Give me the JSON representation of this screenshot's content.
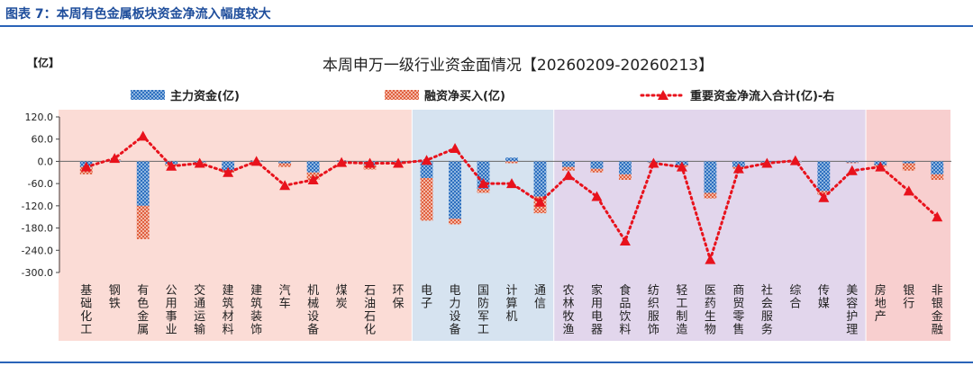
{
  "header": {
    "figure_label": "图表 7：本周有色金属板块资金净流入幅度较大"
  },
  "chart_data": {
    "type": "bar",
    "title": "本周申万一级行业资金面情况【20260209-20260213】",
    "ylabel": "【亿】",
    "ylim": [
      -300,
      120
    ],
    "yticks": [
      "120.0",
      "60.0",
      "0.0",
      "-60.0",
      "-120.0",
      "-180.0",
      "-240.0",
      "-300.0"
    ],
    "yticks_values": [
      120,
      60,
      0,
      -60,
      -120,
      -180,
      -240,
      -300
    ],
    "legend": [
      "主力资金(亿)",
      "融资净买入(亿)",
      "重要资金净流入合计(亿)-右"
    ],
    "legend_position": "top",
    "categories": [
      "基础化工",
      "钢铁",
      "有色金属",
      "公用事业",
      "交通运输",
      "建筑材料",
      "建筑装饰",
      "汽车",
      "机械设备",
      "煤炭",
      "石油石化",
      "环保",
      "电子",
      "电力设备",
      "国防军工",
      "计算机",
      "通信",
      "农林牧渔",
      "家用电器",
      "食品饮料",
      "纺织服饰",
      "轻工制造",
      "医药生物",
      "商贸零售",
      "社会服务",
      "综合",
      "传媒",
      "美容护理",
      "房地产",
      "银行",
      "非银金融"
    ],
    "series": [
      {
        "name": "主力资金(亿)",
        "color": "#3f7fc4",
        "values": [
          -15,
          3,
          -120,
          -8,
          -3,
          -25,
          2,
          -5,
          -30,
          2,
          -10,
          -3,
          -45,
          -155,
          -75,
          10,
          -95,
          -15,
          -20,
          -35,
          -3,
          -10,
          -85,
          -15,
          -3,
          -2,
          -80,
          -3,
          -10,
          -5,
          -35
        ]
      },
      {
        "name": "融资净买入(亿)",
        "color": "#e8836a",
        "values": [
          -20,
          2,
          -90,
          -5,
          -2,
          -5,
          1,
          -10,
          -20,
          1,
          -12,
          -2,
          -115,
          -15,
          -10,
          -5,
          -45,
          -10,
          -10,
          -15,
          -2,
          -5,
          -15,
          -5,
          -1,
          1,
          -10,
          -2,
          -5,
          -20,
          -15
        ]
      },
      {
        "name": "重要资金净流入合计(亿)-右",
        "color": "#e8121c",
        "values": [
          -15,
          8,
          68,
          -13,
          -5,
          -30,
          0,
          -65,
          -50,
          -3,
          -5,
          -5,
          3,
          35,
          -60,
          -60,
          -110,
          -38,
          -95,
          -215,
          -5,
          -15,
          -265,
          -20,
          -5,
          2,
          -98,
          -25,
          -15,
          -80,
          -150
        ]
      }
    ],
    "groups": [
      {
        "start": 0,
        "end": 11,
        "color": "#fbdcd6"
      },
      {
        "start": 12,
        "end": 16,
        "color": "#d6e3f0"
      },
      {
        "start": 17,
        "end": 27,
        "color": "#e2d6ec"
      },
      {
        "start": 28,
        "end": 30,
        "color": "#f8cfcf"
      }
    ],
    "grid": false
  }
}
